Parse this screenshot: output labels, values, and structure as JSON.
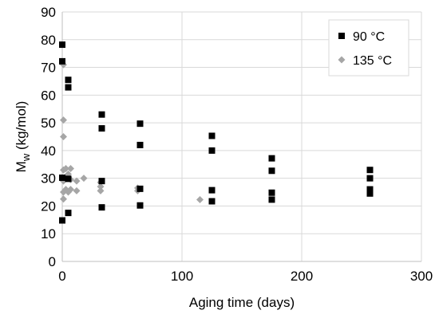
{
  "chart_data": {
    "type": "scatter",
    "xlabel": "Aging time (days)",
    "ylabel": {
      "main": "M",
      "subscript": "w",
      "suffix": " (kg/mol)"
    },
    "xlim": [
      0,
      300
    ],
    "ylim": [
      0,
      90
    ],
    "xticks": [
      0,
      100,
      200,
      300
    ],
    "yticks": [
      0,
      10,
      20,
      30,
      40,
      50,
      60,
      70,
      80,
      90
    ],
    "grid": "both",
    "legend_position": "top-right",
    "series": [
      {
        "name": "90 °C",
        "marker": "square",
        "color": "#000000",
        "points": [
          [
            0,
            78.2
          ],
          [
            0,
            72.2
          ],
          [
            0,
            30.2
          ],
          [
            0,
            14.8
          ],
          [
            5,
            65.5
          ],
          [
            5,
            62.8
          ],
          [
            5,
            29.8
          ],
          [
            5,
            17.5
          ],
          [
            33,
            53.0
          ],
          [
            33,
            48.0
          ],
          [
            33,
            29.0
          ],
          [
            33,
            19.5
          ],
          [
            65,
            49.7
          ],
          [
            65,
            42.0
          ],
          [
            65,
            26.2
          ],
          [
            65,
            20.2
          ],
          [
            125,
            45.3
          ],
          [
            125,
            40.0
          ],
          [
            125,
            25.7
          ],
          [
            125,
            21.7
          ],
          [
            175,
            37.2
          ],
          [
            175,
            32.7
          ],
          [
            175,
            24.8
          ],
          [
            175,
            22.3
          ],
          [
            257,
            33.0
          ],
          [
            257,
            30.0
          ],
          [
            257,
            26.0
          ],
          [
            257,
            24.5
          ]
        ]
      },
      {
        "name": "135 °C",
        "marker": "diamond",
        "color": "#a6a6a6",
        "points": [
          [
            1,
            71.0
          ],
          [
            1,
            51.0
          ],
          [
            1,
            45.0
          ],
          [
            1,
            33.0
          ],
          [
            1,
            29.0
          ],
          [
            1,
            25.0
          ],
          [
            1,
            22.5
          ],
          [
            3,
            33.5
          ],
          [
            3,
            30.0
          ],
          [
            3,
            26.0
          ],
          [
            5,
            31.5
          ],
          [
            5,
            25.0
          ],
          [
            7,
            33.5
          ],
          [
            7,
            29.5
          ],
          [
            7,
            26.0
          ],
          [
            12,
            29.0
          ],
          [
            12,
            25.5
          ],
          [
            18,
            30.0
          ],
          [
            32,
            28.5
          ],
          [
            32,
            27.0
          ],
          [
            32,
            25.5
          ],
          [
            63,
            26.5
          ],
          [
            63,
            25.5
          ],
          [
            115,
            22.3
          ]
        ]
      }
    ]
  }
}
